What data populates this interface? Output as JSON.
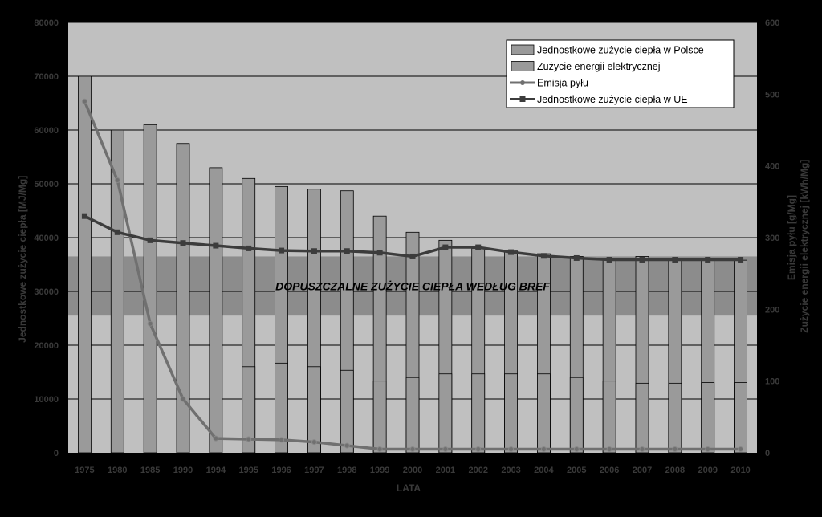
{
  "chart_data": {
    "type": "bar",
    "categories": [
      "1975",
      "1980",
      "1985",
      "1990",
      "1994",
      "1995",
      "1996",
      "1997",
      "1998",
      "1999",
      "2000",
      "2001",
      "2002",
      "2003",
      "2004",
      "2005",
      "2006",
      "2007",
      "2008",
      "2009",
      "2010"
    ],
    "series": [
      {
        "name": "Jednostkowe zużycie ciepła  w Polsce",
        "kind": "bar",
        "axis": "left",
        "color": "#9a9a9a",
        "values": [
          70000,
          60000,
          61000,
          57500,
          53000,
          51000,
          49500,
          49000,
          48700,
          44000,
          41000,
          39500,
          38000,
          37500,
          37000,
          36500,
          36000,
          36500,
          36000,
          35800,
          35800
        ]
      },
      {
        "name": "Zużycie energii elektrycznej",
        "kind": "bar",
        "axis": "right",
        "color": "#9a9a9a",
        "values": [
          null,
          null,
          null,
          null,
          null,
          120,
          125,
          120,
          115,
          100,
          105,
          110,
          110,
          110,
          110,
          105,
          100,
          97,
          97,
          98,
          98
        ]
      },
      {
        "name": "Emisja pyłu",
        "kind": "line",
        "axis": "right",
        "color": "#707070",
        "values": [
          490,
          380,
          180,
          75,
          20,
          19,
          18,
          15,
          10,
          5,
          5,
          5,
          5,
          5,
          5,
          5,
          5,
          5,
          5,
          5,
          5
        ]
      },
      {
        "name": "Jednostkowe zużycie ciepła  w UE",
        "kind": "line",
        "axis": "left",
        "color": "#3c3c3c",
        "values": [
          44000,
          41000,
          39500,
          39000,
          38500,
          38000,
          37600,
          37500,
          37500,
          37200,
          36500,
          38200,
          38200,
          37300,
          36600,
          36200,
          35900,
          35900,
          35900,
          35900,
          35900
        ]
      }
    ],
    "band": {
      "from": 25500,
      "to": 36500,
      "label": "DOPUSZCZALNE ZUŻYCIE CIEPŁA WEDŁUG BREF"
    },
    "ylim_left": [
      0,
      80000
    ],
    "ylim_right": [
      0,
      600
    ],
    "left_ticks": [
      0,
      10000,
      20000,
      30000,
      40000,
      50000,
      60000,
      70000,
      80000
    ],
    "right_ticks": [
      0,
      100,
      200,
      300,
      400,
      500,
      600
    ],
    "xlabel": "LATA",
    "ylabel_left": "Jednostkowe zużycie ciepła  [MJ/Mg]",
    "ylabel_right_1": "Emisja pyłu  [g/Mg]",
    "ylabel_right_2": "Zużycie energii elektrycznej  [kWh/Mg]",
    "legend_position": "top-right",
    "grid": true,
    "colors": {
      "background": "#000000",
      "plot_area": "#c0c0c0",
      "band": "#8c8c8c",
      "bar": "#9a9a9a",
      "gridline": "#000000",
      "axis_text": "#3a3a3a"
    }
  }
}
